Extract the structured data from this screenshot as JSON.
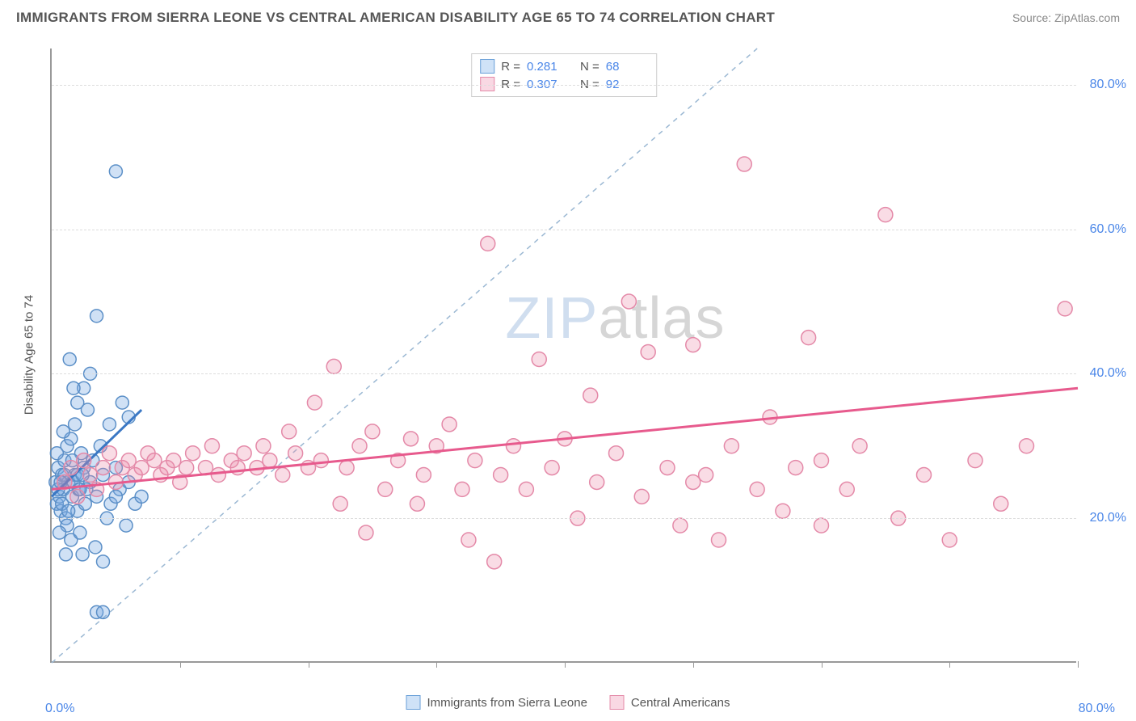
{
  "title": "IMMIGRANTS FROM SIERRA LEONE VS CENTRAL AMERICAN DISABILITY AGE 65 TO 74 CORRELATION CHART",
  "source_label": "Source: ",
  "source_site": "ZipAtlas.com",
  "ylabel": "Disability Age 65 to 74",
  "watermark_a": "ZIP",
  "watermark_b": "atlas",
  "chart": {
    "type": "scatter-correlation",
    "xlim": [
      0,
      80
    ],
    "ylim": [
      0,
      85
    ],
    "x_tick_positions": [
      0,
      10,
      20,
      30,
      40,
      50,
      60,
      70,
      80
    ],
    "y_gridlines": [
      20,
      40,
      60,
      80
    ],
    "y_tick_labels": [
      "20.0%",
      "40.0%",
      "60.0%",
      "80.0%"
    ],
    "x_min_label": "0.0%",
    "x_max_label": "80.0%",
    "background_color": "#ffffff",
    "grid_color": "#dddddd",
    "axis_color": "#999999",
    "diag_line_color": "#9bb8d3",
    "series": [
      {
        "id": "sierra_leone",
        "label": "Immigrants from Sierra Leone",
        "r": 0.281,
        "n": 68,
        "marker_fill": "rgba(120,170,225,0.35)",
        "marker_stroke": "#5b8fc7",
        "marker_radius": 8,
        "trend_color": "#3b78c4",
        "trend_width": 3,
        "trend": {
          "x1": 0,
          "y1": 23,
          "x2": 7,
          "y2": 35
        },
        "swatch_fill": "#cfe2f7",
        "swatch_border": "#6aa0d8",
        "points": [
          [
            0.3,
            25
          ],
          [
            0.4,
            22
          ],
          [
            0.5,
            27
          ],
          [
            0.6,
            23
          ],
          [
            0.7,
            21
          ],
          [
            0.8,
            26
          ],
          [
            0.9,
            24
          ],
          [
            1.0,
            28
          ],
          [
            1.1,
            20
          ],
          [
            1.2,
            30
          ],
          [
            1.2,
            19
          ],
          [
            1.3,
            25
          ],
          [
            1.5,
            31
          ],
          [
            1.5,
            17
          ],
          [
            1.6,
            23
          ],
          [
            1.8,
            26
          ],
          [
            1.8,
            33
          ],
          [
            2.0,
            21
          ],
          [
            2.0,
            36
          ],
          [
            2.1,
            24
          ],
          [
            2.2,
            18
          ],
          [
            2.3,
            29
          ],
          [
            2.4,
            15
          ],
          [
            2.5,
            27
          ],
          [
            2.5,
            38
          ],
          [
            2.6,
            22
          ],
          [
            2.8,
            35
          ],
          [
            3.0,
            25
          ],
          [
            3.0,
            40
          ],
          [
            3.2,
            28
          ],
          [
            3.4,
            16
          ],
          [
            3.5,
            23
          ],
          [
            3.5,
            48
          ],
          [
            3.8,
            30
          ],
          [
            4.0,
            26
          ],
          [
            4.0,
            14
          ],
          [
            4.3,
            20
          ],
          [
            4.5,
            33
          ],
          [
            4.6,
            22
          ],
          [
            5.0,
            27
          ],
          [
            5.0,
            68
          ],
          [
            5.3,
            24
          ],
          [
            5.5,
            36
          ],
          [
            5.8,
            19
          ],
          [
            6.0,
            25
          ],
          [
            6.0,
            34
          ],
          [
            6.5,
            22
          ],
          [
            7.0,
            23
          ],
          [
            1.4,
            42
          ],
          [
            0.6,
            18
          ],
          [
            0.9,
            32
          ],
          [
            1.1,
            15
          ],
          [
            2.7,
            24
          ],
          [
            0.5,
            24
          ],
          [
            0.8,
            22
          ],
          [
            1.0,
            26
          ],
          [
            1.3,
            21
          ],
          [
            3.5,
            7
          ],
          [
            4.0,
            7
          ],
          [
            1.7,
            25
          ],
          [
            1.7,
            38
          ],
          [
            2.0,
            26
          ],
          [
            2.2,
            24
          ],
          [
            0.4,
            29
          ],
          [
            0.7,
            25
          ],
          [
            5.0,
            23
          ],
          [
            1.6,
            28
          ],
          [
            2.4,
            26
          ]
        ]
      },
      {
        "id": "central_american",
        "label": "Central Americans",
        "r": 0.307,
        "n": 92,
        "marker_fill": "rgba(235,140,170,0.3)",
        "marker_stroke": "#e489a8",
        "marker_radius": 9,
        "trend_color": "#e75a8d",
        "trend_width": 3,
        "trend": {
          "x1": 0,
          "y1": 24,
          "x2": 80,
          "y2": 38
        },
        "swatch_fill": "#f9d8e3",
        "swatch_border": "#e48aa9",
        "points": [
          [
            1,
            25
          ],
          [
            1.5,
            27
          ],
          [
            2,
            23
          ],
          [
            2.5,
            28
          ],
          [
            3,
            26
          ],
          [
            3.5,
            24
          ],
          [
            4,
            27
          ],
          [
            4.5,
            29
          ],
          [
            5,
            25
          ],
          [
            5.5,
            27
          ],
          [
            6,
            28
          ],
          [
            6.5,
            26
          ],
          [
            7,
            27
          ],
          [
            7.5,
            29
          ],
          [
            8,
            28
          ],
          [
            8.5,
            26
          ],
          [
            9,
            27
          ],
          [
            9.5,
            28
          ],
          [
            10,
            25
          ],
          [
            10.5,
            27
          ],
          [
            11,
            29
          ],
          [
            12,
            27
          ],
          [
            12.5,
            30
          ],
          [
            13,
            26
          ],
          [
            14,
            28
          ],
          [
            14.5,
            27
          ],
          [
            15,
            29
          ],
          [
            16,
            27
          ],
          [
            16.5,
            30
          ],
          [
            17,
            28
          ],
          [
            18,
            26
          ],
          [
            18.5,
            32
          ],
          [
            19,
            29
          ],
          [
            20,
            27
          ],
          [
            20.5,
            36
          ],
          [
            21,
            28
          ],
          [
            22,
            41
          ],
          [
            22.5,
            22
          ],
          [
            23,
            27
          ],
          [
            24,
            30
          ],
          [
            24.5,
            18
          ],
          [
            25,
            32
          ],
          [
            26,
            24
          ],
          [
            27,
            28
          ],
          [
            28,
            31
          ],
          [
            28.5,
            22
          ],
          [
            29,
            26
          ],
          [
            30,
            30
          ],
          [
            31,
            33
          ],
          [
            32,
            24
          ],
          [
            32.5,
            17
          ],
          [
            33,
            28
          ],
          [
            34,
            58
          ],
          [
            34.5,
            14
          ],
          [
            35,
            26
          ],
          [
            36,
            30
          ],
          [
            37,
            24
          ],
          [
            38,
            42
          ],
          [
            39,
            27
          ],
          [
            40,
            31
          ],
          [
            41,
            20
          ],
          [
            42,
            37
          ],
          [
            42.5,
            25
          ],
          [
            44,
            29
          ],
          [
            45,
            50
          ],
          [
            46,
            23
          ],
          [
            46.5,
            43
          ],
          [
            48,
            27
          ],
          [
            49,
            19
          ],
          [
            50,
            44
          ],
          [
            51,
            26
          ],
          [
            52,
            17
          ],
          [
            53,
            30
          ],
          [
            54,
            69
          ],
          [
            55,
            24
          ],
          [
            56,
            34
          ],
          [
            57,
            21
          ],
          [
            58,
            27
          ],
          [
            59,
            45
          ],
          [
            60,
            19
          ],
          [
            62,
            24
          ],
          [
            63,
            30
          ],
          [
            65,
            62
          ],
          [
            66,
            20
          ],
          [
            68,
            26
          ],
          [
            70,
            17
          ],
          [
            72,
            28
          ],
          [
            74,
            22
          ],
          [
            76,
            30
          ],
          [
            79,
            49
          ],
          [
            60,
            28
          ],
          [
            50,
            25
          ]
        ]
      }
    ]
  },
  "legend_top": {
    "r_label": "R  =",
    "n_label": "N  ="
  }
}
